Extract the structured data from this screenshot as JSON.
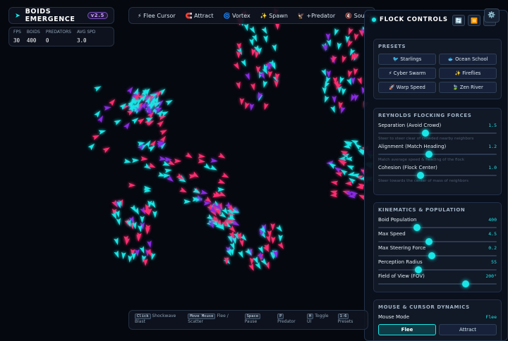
{
  "header": {
    "title": "BOIDS EMERGENCE",
    "version": "v2.5"
  },
  "stats": [
    {
      "label": "FPS",
      "value": "30"
    },
    {
      "label": "BOIDS",
      "value": "400"
    },
    {
      "label": "PREDATORS",
      "value": "0"
    },
    {
      "label": "AVG SPD",
      "value": "3.0"
    }
  ],
  "toolbar": [
    "⚡ Flee Cursor",
    "🧲 Attract",
    "🌀 Vortex",
    "✨ Spawn",
    "🦅 +Predator",
    "🔇 Sound"
  ],
  "panel": {
    "title": "FLOCK CONTROLS",
    "icons": [
      "🔄",
      "⏸️",
      "⚙️"
    ],
    "presets": {
      "heading": "PRESETS",
      "items": [
        "🐦 Starlings",
        "🐟 Ocean School",
        "⚡ Cyber Swarm",
        "✨ Fireflies",
        "🚀 Warp Speed",
        "🍃 Zen River"
      ]
    },
    "forces": {
      "heading": "REYNOLDS FLOCKING FORCES",
      "sliders": [
        {
          "label": "Separation (Avoid Crowd)",
          "value": "1.5",
          "hint": "Steer to steer clear of crowded nearby neighbors"
        },
        {
          "label": "Alignment (Match Heading)",
          "value": "1.2",
          "hint": "Match average speed & heading of the flock"
        },
        {
          "label": "Cohesion (Flock Center)",
          "value": "1.0",
          "hint": "Steer towards the center of mass of neighbors"
        }
      ]
    },
    "kinematics": {
      "heading": "KINEMATICS & POPULATION",
      "sliders": [
        {
          "label": "Boid Population",
          "value": "400"
        },
        {
          "label": "Max Speed",
          "value": "4.5"
        },
        {
          "label": "Max Steering Force",
          "value": "0.2"
        },
        {
          "label": "Perception Radius",
          "value": "55"
        },
        {
          "label": "Field of View (FOV)",
          "value": "200°"
        }
      ]
    },
    "mouse": {
      "heading": "MOUSE & CURSOR DYNAMICS",
      "mode_label": "Mouse Mode",
      "mode_value": "Flee",
      "buttons": [
        "Flee",
        "Attract"
      ]
    }
  },
  "hints": [
    {
      "key": "Click",
      "text": "Shockwave Blast"
    },
    {
      "key": "Move Mouse",
      "text": "Flee / Scatter"
    },
    {
      "key": "Space",
      "text": "Pause"
    },
    {
      "key": "P",
      "text": "Predator"
    },
    {
      "key": "H",
      "text": "Toggle UI"
    },
    {
      "key": "1-6",
      "text": "Presets"
    }
  ]
}
